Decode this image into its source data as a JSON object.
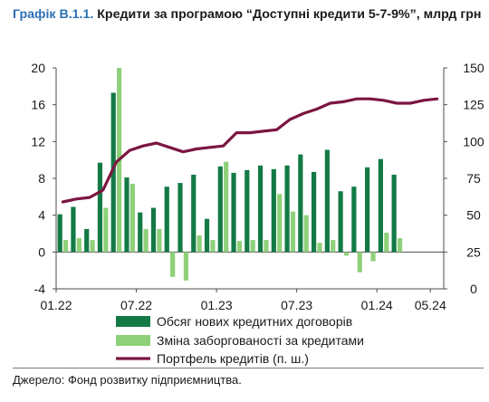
{
  "title_prefix": "Графік В.1.1.",
  "title_text": "Кредити за програмою “Доступні кредити 5-7-9%”, млрд грн",
  "source": "Джерело: Фонд розвитку підприємництва.",
  "chart_data": {
    "type": "bar",
    "x_tick_labels": [
      "01.22",
      "07.22",
      "01.23",
      "07.23",
      "01.24",
      "05.24"
    ],
    "categories": [
      "01.22",
      "02.22",
      "03.22",
      "04.22",
      "05.22",
      "06.22",
      "07.22",
      "08.22",
      "09.22",
      "10.22",
      "11.22",
      "12.22",
      "01.23",
      "02.23",
      "03.23",
      "04.23",
      "05.23",
      "06.23",
      "07.23",
      "08.23",
      "09.23",
      "10.23",
      "11.23",
      "12.23",
      "01.24",
      "02.24",
      "03.24",
      "04.24",
      "05.24"
    ],
    "y_left": {
      "min": -4,
      "max": 20,
      "ticks": [
        -4,
        0,
        4,
        8,
        12,
        16,
        20
      ]
    },
    "y_right": {
      "min": 0,
      "max": 150,
      "ticks": [
        0,
        25,
        50,
        75,
        100,
        125,
        150
      ]
    },
    "grid": false,
    "legend_position": "bottom",
    "colors": {
      "bar_dark": "#137a46",
      "bar_light": "#8fd07a",
      "line": "#7b1640",
      "axis": "#4d4d4d"
    },
    "series": [
      {
        "name": "Обсяг нових кредитних договорів",
        "type": "bar",
        "axis": "left",
        "values": [
          4.1,
          4.9,
          2.5,
          9.7,
          17.3,
          8.1,
          4.3,
          4.8,
          7.1,
          7.5,
          8.4,
          3.6,
          9.3,
          8.6,
          8.9,
          9.4,
          9.0,
          9.4,
          10.6,
          8.7,
          11.1,
          6.6,
          7.1,
          9.2,
          10.1,
          8.4,
          0,
          0,
          0
        ]
      },
      {
        "name": "Зміна заборгованості за кредитами",
        "type": "bar",
        "axis": "left",
        "values": [
          1.3,
          1.5,
          1.3,
          4.8,
          20.0,
          7.4,
          2.5,
          2.5,
          -2.7,
          -3.1,
          1.8,
          1.3,
          9.8,
          1.2,
          1.3,
          1.3,
          6.3,
          4.4,
          4.0,
          1.0,
          1.3,
          -0.4,
          -2.2,
          -1.0,
          2.1,
          1.5,
          0,
          0,
          0
        ]
      },
      {
        "name": "Портфель кредитів (п. ш.)",
        "type": "line",
        "axis": "right",
        "values": [
          59,
          61,
          62,
          67,
          86,
          94,
          97,
          99,
          96,
          93,
          95,
          96,
          97,
          106,
          106,
          107,
          108,
          115,
          119,
          122,
          126,
          127,
          129,
          129,
          128,
          126,
          126,
          128,
          129
        ]
      }
    ]
  }
}
